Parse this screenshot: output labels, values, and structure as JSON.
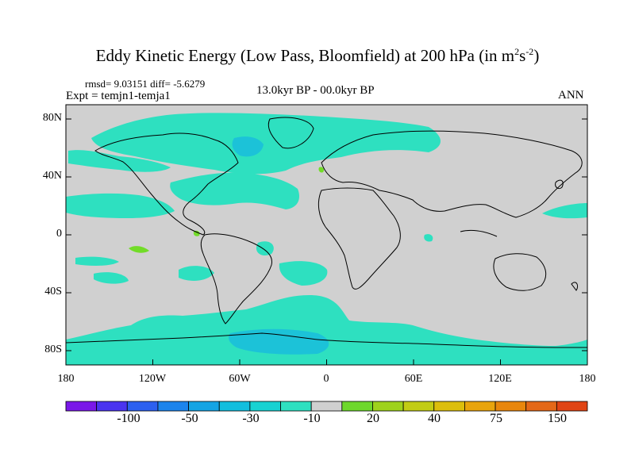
{
  "title": {
    "main": "Eddy Kinetic Energy (Low Pass, Bloomfield) at 200 hPa (in m",
    "sup1": "2",
    "mid": "s",
    "sup2": "-2",
    "close": ")"
  },
  "stats": "rmsd= 9.03151 diff= -5.6279",
  "expt": "Expt = temjn1-temja1",
  "period": "13.0kyr BP - 00.0kyr BP",
  "season": "ANN",
  "map": {
    "lat_labels": [
      "80N",
      "40N",
      "0",
      "40S",
      "80S"
    ],
    "lon_labels": [
      "180",
      "120W",
      "60W",
      "0",
      "60E",
      "120E",
      "180"
    ],
    "colors": {
      "background": "#d0d0d0",
      "neg10": "#2ee0c0",
      "neg30": "#1cc2d8",
      "pos10": "#72dc28"
    }
  },
  "colorbar": {
    "colors": [
      "#7a18e8",
      "#4a34f0",
      "#2c60f0",
      "#1c84ec",
      "#14a4e4",
      "#12bede",
      "#18d2d2",
      "#2ee0c0",
      "#d0d0d0",
      "#6ed82c",
      "#9ed21c",
      "#c2cc14",
      "#dcbe0c",
      "#e8a40c",
      "#e8860c",
      "#e46818",
      "#e04414"
    ],
    "labels": [
      "-100",
      "-50",
      "-30",
      "-10",
      "20",
      "40",
      "75",
      "150"
    ]
  }
}
